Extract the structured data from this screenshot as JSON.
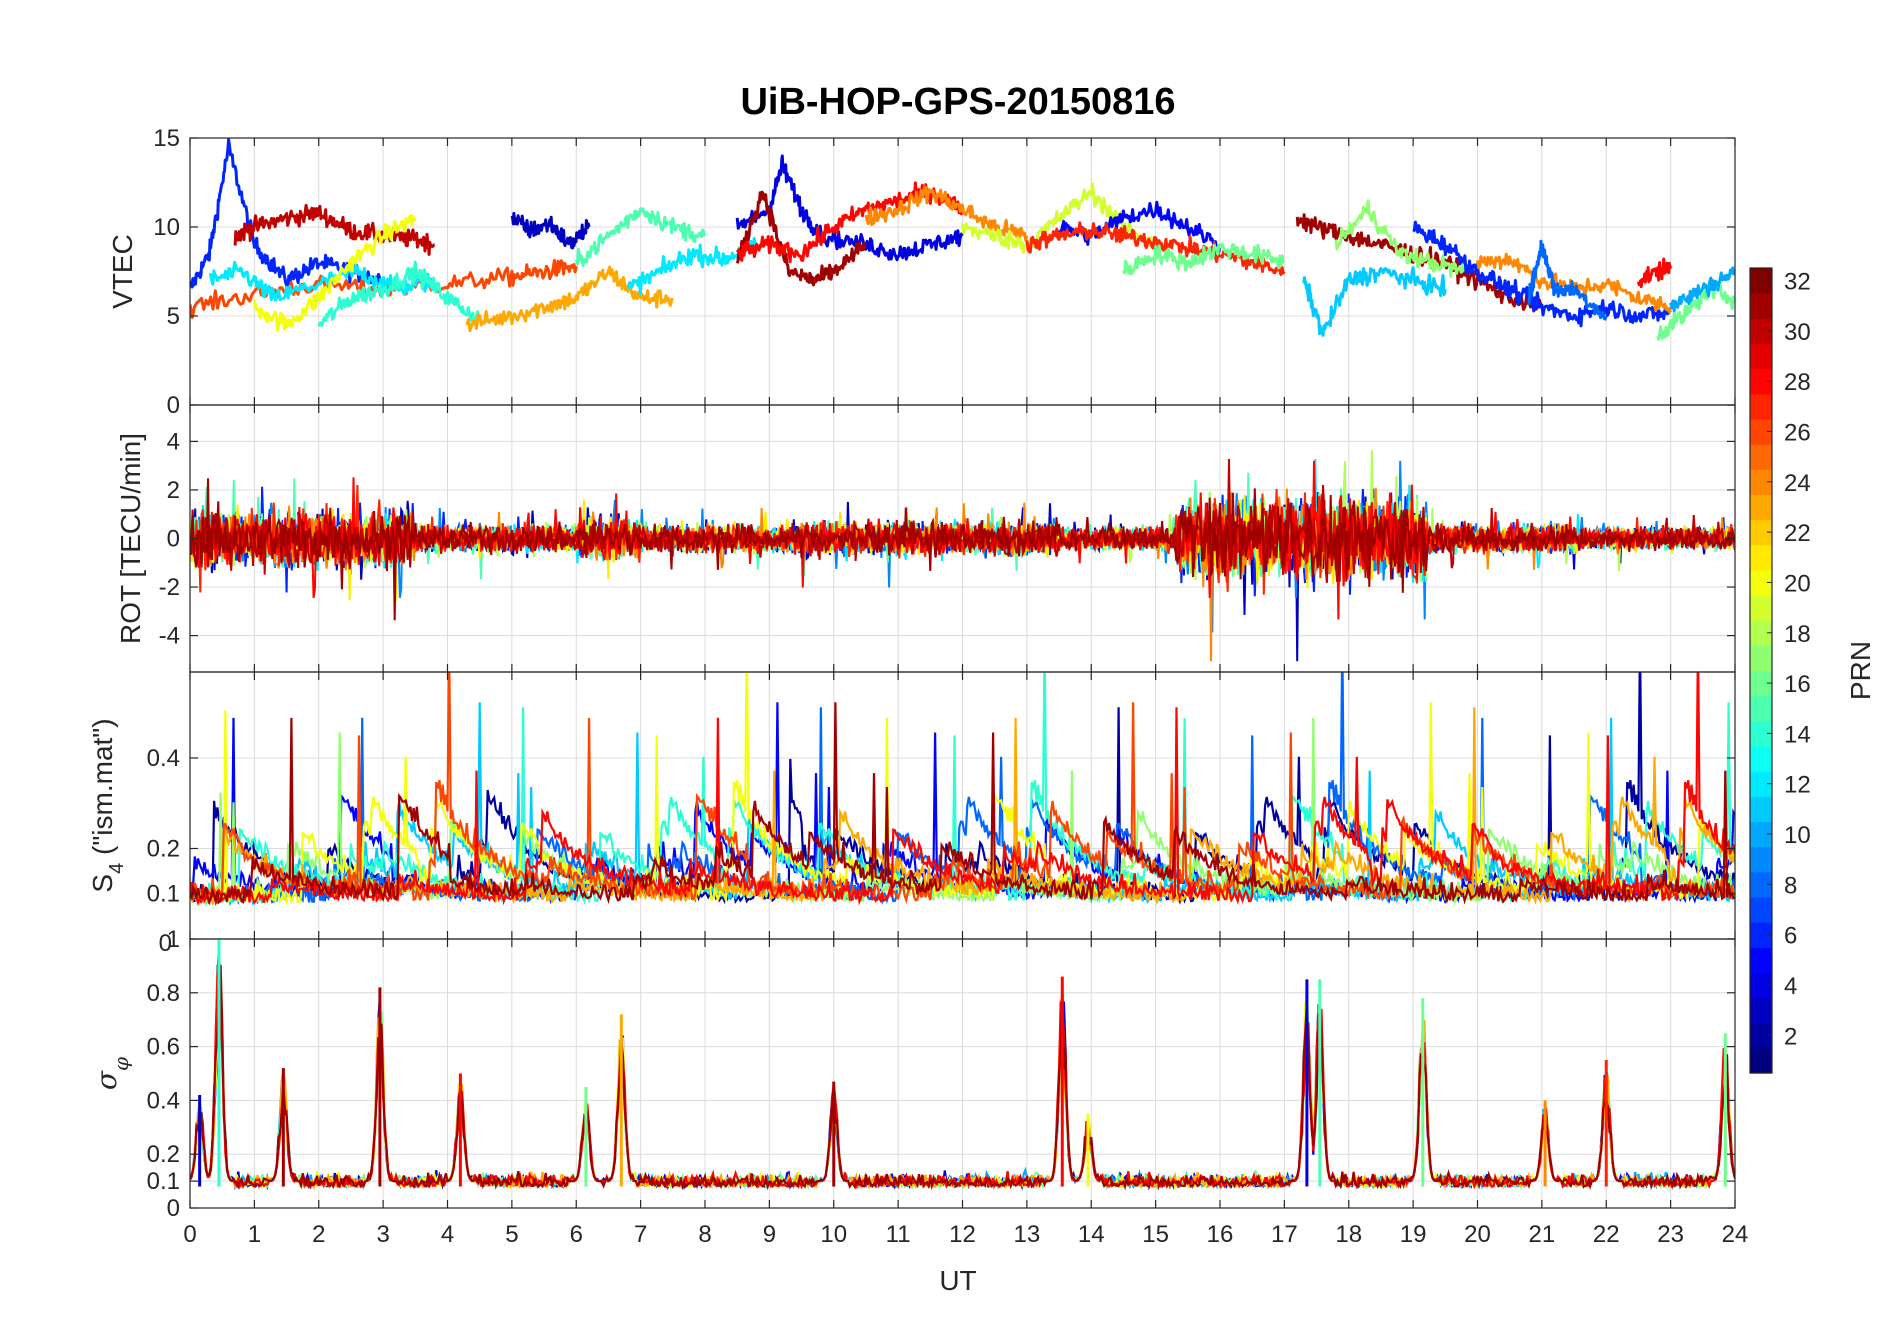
{
  "chart_data": {
    "type": "line",
    "title": "UiB-HOP-GPS-20150816",
    "xlabel": "UT",
    "xlim": [
      0,
      24
    ],
    "x_ticks": [
      "0",
      "1",
      "2",
      "3",
      "4",
      "5",
      "6",
      "7",
      "8",
      "9",
      "10",
      "11",
      "12",
      "13",
      "14",
      "15",
      "16",
      "17",
      "18",
      "19",
      "20",
      "21",
      "22",
      "23",
      "24"
    ],
    "colorbar": {
      "label": "PRN",
      "range": [
        1,
        32
      ],
      "colormap": "jet",
      "ticks": [
        "2",
        "4",
        "6",
        "8",
        "10",
        "12",
        "14",
        "16",
        "18",
        "20",
        "22",
        "24",
        "26",
        "28",
        "30",
        "32"
      ]
    },
    "panels": [
      {
        "id": "vtec",
        "ylabel": "VTEC",
        "ylim": [
          0,
          15
        ],
        "y_ticks": [
          "0",
          "5",
          "10",
          "15"
        ],
        "tick_values": [
          0,
          5,
          10,
          15
        ],
        "series": [
          {
            "prn": 6,
            "x": [
              0.0,
              0.3,
              0.6,
              1.0,
              1.5,
              2.0,
              2.5,
              3.0
            ],
            "y": [
              6.5,
              8.5,
              14.5,
              9.0,
              7.0,
              8.0,
              7.5,
              7.0
            ]
          },
          {
            "prn": 30,
            "x": [
              0.7,
              1.0,
              1.5,
              2.0,
              2.5,
              3.0,
              3.5,
              3.8
            ],
            "y": [
              9.5,
              10.0,
              10.5,
              10.8,
              9.8,
              9.5,
              9.3,
              9.0
            ]
          },
          {
            "prn": 26,
            "x": [
              0.0,
              1.0,
              2.0,
              3.0,
              4.0,
              5.0,
              5.5,
              6.0
            ],
            "y": [
              5.5,
              6.2,
              6.8,
              6.5,
              6.8,
              7.2,
              7.5,
              7.8
            ]
          },
          {
            "prn": 12,
            "x": [
              0.3,
              0.8,
              1.3,
              2.0,
              2.6,
              3.2,
              3.8
            ],
            "y": [
              7.0,
              7.5,
              6.0,
              6.8,
              7.5,
              6.5,
              7.0
            ]
          },
          {
            "prn": 20,
            "x": [
              1.0,
              1.5,
              2.0,
              2.5,
              3.0,
              3.5
            ],
            "y": [
              5.5,
              4.5,
              6.0,
              8.0,
              9.5,
              10.5
            ]
          },
          {
            "prn": 14,
            "x": [
              2.0,
              2.5,
              3.0,
              3.5,
              4.0,
              4.5
            ],
            "y": [
              4.5,
              6.0,
              6.5,
              7.5,
              6.0,
              4.8
            ]
          },
          {
            "prn": 23,
            "x": [
              4.3,
              5.0,
              5.5,
              6.0,
              6.5,
              7.0,
              7.5
            ],
            "y": [
              4.5,
              5.0,
              5.5,
              6.0,
              7.5,
              6.0,
              6.0
            ]
          },
          {
            "prn": 3,
            "x": [
              5.0,
              5.3,
              5.6,
              5.9,
              6.2
            ],
            "y": [
              10.5,
              9.8,
              10.2,
              9.0,
              10.0
            ]
          },
          {
            "prn": 15,
            "x": [
              6.0,
              6.5,
              7.0,
              7.5,
              8.0
            ],
            "y": [
              8.0,
              9.5,
              11.0,
              10.0,
              9.5
            ]
          },
          {
            "prn": 12,
            "x": [
              6.8,
              7.3,
              7.8,
              8.3,
              8.8
            ],
            "y": [
              6.5,
              7.5,
              8.5,
              8.2,
              9.0
            ]
          },
          {
            "prn": 4,
            "x": [
              8.5,
              9.0,
              9.2,
              9.5,
              9.8,
              10.5,
              11.0,
              11.5,
              12.0
            ],
            "y": [
              10.0,
              11.0,
              13.5,
              11.0,
              9.5,
              9.0,
              8.5,
              9.0,
              9.5
            ]
          },
          {
            "prn": 31,
            "x": [
              8.5,
              8.9,
              9.3,
              9.7,
              10.0,
              10.5
            ],
            "y": [
              8.0,
              12.0,
              7.5,
              7.0,
              7.5,
              9.0
            ]
          },
          {
            "prn": 28,
            "x": [
              8.5,
              9.0,
              9.5,
              10.0,
              10.5,
              11.0,
              11.5,
              12.0
            ],
            "y": [
              8.5,
              9.0,
              8.5,
              10.0,
              11.0,
              11.5,
              12.0,
              11.0
            ]
          },
          {
            "prn": 24,
            "x": [
              10.5,
              11.0,
              11.5,
              12.0,
              12.5,
              13.0
            ],
            "y": [
              10.5,
              11.0,
              12.0,
              11.0,
              10.0,
              9.5
            ]
          },
          {
            "prn": 19,
            "x": [
              12.0,
              12.5,
              13.0,
              13.5,
              14.0,
              14.5,
              15.0
            ],
            "y": [
              10.0,
              9.5,
              9.0,
              10.5,
              12.0,
              10.0,
              9.0
            ]
          },
          {
            "prn": 5,
            "x": [
              13.5,
              14.0,
              14.5,
              15.0,
              15.5,
              16.0
            ],
            "y": [
              10.0,
              9.5,
              10.5,
              11.0,
              10.0,
              9.0
            ]
          },
          {
            "prn": 27,
            "x": [
              13.0,
              13.5,
              14.0,
              14.5,
              15.0,
              15.5,
              16.0,
              16.5,
              17.0
            ],
            "y": [
              9.0,
              9.5,
              9.8,
              9.5,
              9.2,
              8.8,
              8.5,
              8.0,
              7.5
            ]
          },
          {
            "prn": 16,
            "x": [
              14.5,
              15.0,
              15.5,
              16.0,
              16.5,
              17.0
            ],
            "y": [
              7.5,
              8.5,
              8.0,
              8.8,
              8.5,
              8.0
            ]
          },
          {
            "prn": 31,
            "x": [
              17.2,
              17.5,
              18.0,
              18.5,
              19.0,
              19.5,
              20.0,
              20.5,
              21.0
            ],
            "y": [
              10.5,
              10.0,
              9.5,
              9.0,
              8.5,
              8.0,
              7.0,
              6.0,
              5.5
            ]
          },
          {
            "prn": 11,
            "x": [
              17.3,
              17.6,
              18.0,
              18.5,
              19.0,
              19.5
            ],
            "y": [
              7.0,
              4.0,
              7.0,
              7.5,
              7.0,
              6.5
            ]
          },
          {
            "prn": 17,
            "x": [
              17.8,
              18.3,
              18.8,
              19.3,
              19.8
            ],
            "y": [
              9.0,
              11.0,
              8.5,
              8.0,
              7.5
            ]
          },
          {
            "prn": 6,
            "x": [
              19.0,
              19.5,
              20.0,
              20.5,
              21.0,
              21.5,
              22.0,
              22.5,
              23.0
            ],
            "y": [
              10.0,
              9.0,
              7.5,
              6.5,
              5.5,
              5.0,
              5.5,
              5.0,
              5.2
            ]
          },
          {
            "prn": 24,
            "x": [
              20.0,
              20.5,
              21.0,
              21.5,
              22.0,
              22.5,
              23.0
            ],
            "y": [
              8.0,
              8.2,
              7.0,
              6.5,
              6.8,
              6.0,
              5.5
            ]
          },
          {
            "prn": 28,
            "x": [
              22.5,
              22.8,
              23.0
            ],
            "y": [
              7.0,
              7.5,
              7.8
            ]
          },
          {
            "prn": 16,
            "x": [
              22.8,
              23.2,
              23.6,
              24.0
            ],
            "y": [
              4.0,
              5.0,
              6.5,
              6.0
            ]
          },
          {
            "prn": 8,
            "x": [
              20.8,
              21.0,
              21.2,
              21.5,
              22.0
            ],
            "y": [
              6.0,
              9.0,
              6.5,
              6.5,
              5.0
            ]
          },
          {
            "prn": 10,
            "x": [
              23.0,
              23.5,
              24.0
            ],
            "y": [
              5.5,
              6.5,
              7.5
            ]
          }
        ]
      },
      {
        "id": "rot",
        "ylabel": "ROT [TECU/min]",
        "ylim": [
          -5.5,
          5.5
        ],
        "y_ticks": [
          "-4",
          "-2",
          "0",
          "2",
          "4"
        ],
        "tick_values": [
          -4,
          -2,
          0,
          2,
          4
        ],
        "bursts": [
          {
            "x0": 0.0,
            "x1": 3.5,
            "amp": 2.0
          },
          {
            "x0": 3.5,
            "x1": 6.0,
            "amp": 1.0
          },
          {
            "x0": 6.0,
            "x1": 7.0,
            "amp": 1.5
          },
          {
            "x0": 7.0,
            "x1": 9.5,
            "amp": 1.0
          },
          {
            "x0": 9.5,
            "x1": 13.5,
            "amp": 1.2
          },
          {
            "x0": 13.5,
            "x1": 15.3,
            "amp": 0.8
          },
          {
            "x0": 15.3,
            "x1": 19.2,
            "amp": 3.0
          },
          {
            "x0": 19.2,
            "x1": 21.5,
            "amp": 1.0
          },
          {
            "x0": 21.5,
            "x1": 24.0,
            "amp": 0.8
          }
        ]
      },
      {
        "id": "s4",
        "ylabel": "S",
        "ylabel_sub": "4",
        "ylabel_suffix": " (\"ism.mat\")",
        "ylim": [
          0.0,
          0.59
        ],
        "y_ticks": [
          "0.1",
          "0.2",
          "0.4"
        ],
        "tick_values": [
          0.1,
          0.2,
          0.4
        ],
        "baseline": 0.08
      },
      {
        "id": "sigphi",
        "ylabel": "σ",
        "ylabel_sub": "φ",
        "ylim": [
          0,
          1
        ],
        "y_ticks": [
          "0",
          "0.1",
          "0.2",
          "0.4",
          "0.6",
          "0.8",
          "1"
        ],
        "tick_values": [
          0,
          0.1,
          0.2,
          0.4,
          0.6,
          0.8,
          1.0
        ],
        "overlap_label": "0",
        "spikes": [
          {
            "x": 0.45,
            "y": 1.0,
            "prn": 14
          },
          {
            "x": 0.15,
            "y": 0.42,
            "prn": 3
          },
          {
            "x": 1.45,
            "y": 0.52,
            "prn": 31
          },
          {
            "x": 2.95,
            "y": 0.82,
            "prn": 31
          },
          {
            "x": 4.2,
            "y": 0.5,
            "prn": 28
          },
          {
            "x": 6.7,
            "y": 0.72,
            "prn": 23
          },
          {
            "x": 6.15,
            "y": 0.45,
            "prn": 16
          },
          {
            "x": 10.0,
            "y": 0.47,
            "prn": 31
          },
          {
            "x": 13.55,
            "y": 0.86,
            "prn": 28
          },
          {
            "x": 13.95,
            "y": 0.35,
            "prn": 20
          },
          {
            "x": 17.35,
            "y": 0.85,
            "prn": 4
          },
          {
            "x": 17.55,
            "y": 0.85,
            "prn": 15
          },
          {
            "x": 19.15,
            "y": 0.78,
            "prn": 16
          },
          {
            "x": 21.05,
            "y": 0.4,
            "prn": 24
          },
          {
            "x": 22.0,
            "y": 0.55,
            "prn": 27
          },
          {
            "x": 23.85,
            "y": 0.65,
            "prn": 16
          }
        ]
      }
    ]
  }
}
